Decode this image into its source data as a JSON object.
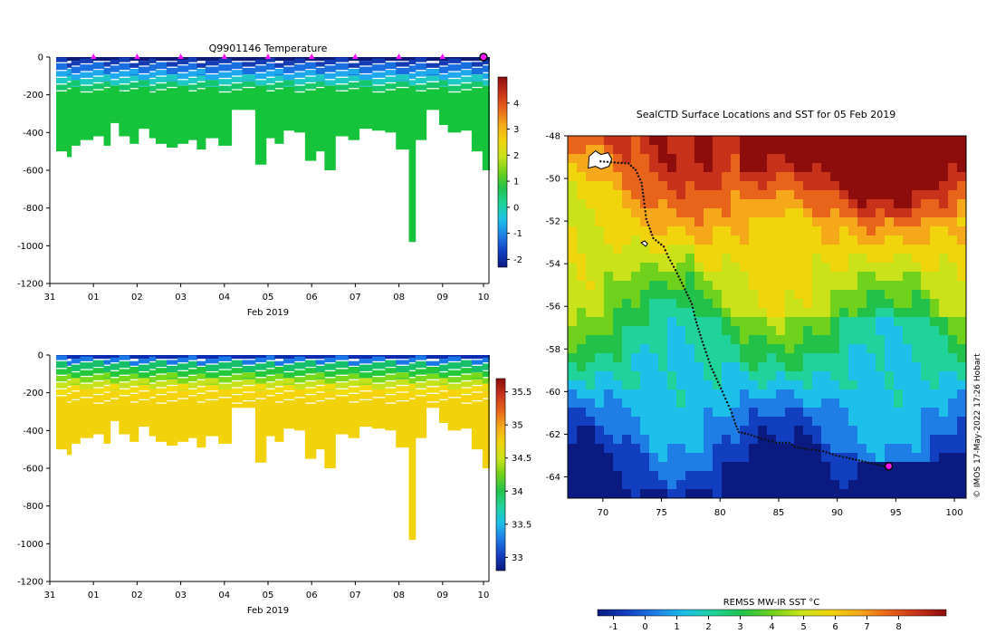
{
  "colors": {
    "rainbow": [
      "#0b1a80",
      "#123fc0",
      "#1f7ee6",
      "#1cc0e8",
      "#1fd39a",
      "#22c24a",
      "#6fd11c",
      "#c9e21a",
      "#f0d40c",
      "#f4a81a",
      "#e8641a",
      "#c8321a",
      "#8c0d0c"
    ],
    "temp_bins": [
      "#0d1a78",
      "#123bb4",
      "#1a6fe0",
      "#1ea8ee",
      "#1ec8c4",
      "#16c66a",
      "#15c43a"
    ],
    "sal_bins": [
      "#0b2cb0",
      "#1a78e6",
      "#16c06a",
      "#22c83a",
      "#78da1a",
      "#c6e21a",
      "#f2dc0a",
      "#f6d40c",
      "#f2d20a"
    ],
    "track": "#111111",
    "marker_magenta": "#ff18ff"
  },
  "credit": "© IMOS 17-May-2022 17:26 Hobart",
  "chart_data": [
    {
      "type": "heatmap",
      "name": "temperature_profiles",
      "title": "Q9901146  Temperature",
      "xlabel": "Feb 2019",
      "ylabel": "",
      "x_tick_labels": [
        "31",
        "01",
        "02",
        "03",
        "04",
        "05",
        "06",
        "07",
        "08",
        "09",
        "10"
      ],
      "y_ticks": [
        0,
        -200,
        -400,
        -600,
        -800,
        -1000,
        -1200
      ],
      "ylim": [
        -1200,
        0
      ],
      "xlim_days": [
        0,
        10
      ],
      "profile_days": [
        0.0,
        0.25,
        0.35,
        0.55,
        0.85,
        1.1,
        1.25,
        1.45,
        1.7,
        1.9,
        2.15,
        2.3,
        2.55,
        2.8,
        3.05,
        3.25,
        3.45,
        3.75,
        4.05,
        4.3,
        4.6,
        4.85,
        5.05,
        5.25,
        5.5,
        5.75,
        6.0,
        6.2,
        6.45,
        6.75,
        7.0,
        7.3,
        7.6,
        7.85,
        8.15,
        8.3,
        8.55,
        8.85,
        9.05,
        9.35,
        9.6,
        9.85,
        10.0
      ],
      "profile_depths": [
        -500,
        -530,
        -470,
        -440,
        -420,
        -470,
        -350,
        -420,
        -460,
        -380,
        -430,
        -460,
        -480,
        -460,
        -440,
        -490,
        -430,
        -470,
        -280,
        -280,
        -570,
        -430,
        -460,
        -390,
        -400,
        -550,
        -500,
        -600,
        -420,
        -440,
        -380,
        -390,
        -400,
        -490,
        -980,
        -440,
        -280,
        -360,
        -400,
        -390,
        -500,
        -600,
        -600
      ],
      "color_levels": [
        -2,
        -1.2,
        -0.5,
        0.2,
        0.8,
        1.4,
        2.0
      ],
      "surface_markers_days": [
        1,
        2,
        3,
        4,
        5,
        6,
        7,
        8,
        9
      ],
      "current_marker_day": 10,
      "colorbar": {
        "min": -2.3,
        "max": 5.0,
        "ticks": [
          4,
          3,
          2,
          1,
          0,
          -1,
          -2
        ],
        "tick_labels": [
          "4",
          "3",
          "2",
          "1",
          "0",
          "-1",
          "-2"
        ]
      }
    },
    {
      "type": "heatmap",
      "name": "salinity_profiles",
      "title": "",
      "xlabel": "Feb 2019",
      "ylabel": "",
      "x_tick_labels": [
        "31",
        "01",
        "02",
        "03",
        "04",
        "05",
        "06",
        "07",
        "08",
        "09",
        "10"
      ],
      "y_ticks": [
        0,
        -200,
        -400,
        -600,
        -800,
        -1000,
        -1200
      ],
      "ylim": [
        -1200,
        0
      ],
      "xlim_days": [
        0,
        10
      ],
      "color_levels": [
        33.0,
        33.6,
        34.0,
        34.2,
        34.4,
        34.5,
        34.6,
        34.65,
        34.7
      ],
      "colorbar": {
        "min": 32.8,
        "max": 35.7,
        "ticks": [
          35.5,
          35,
          34.5,
          34,
          33.5,
          33
        ],
        "tick_labels": [
          "35.5",
          "35",
          "34.5",
          "34",
          "33.5",
          "33"
        ]
      }
    },
    {
      "type": "scatter",
      "name": "sealctd_track_map",
      "title": "SealCTD Surface Locations and SST for 05 Feb 2019",
      "xlabel": "",
      "ylabel": "",
      "xlim": [
        67,
        101
      ],
      "ylim": [
        -65,
        -48
      ],
      "x_ticks": [
        70,
        75,
        80,
        85,
        90,
        95,
        100
      ],
      "x_tick_labels": [
        "70",
        "75",
        "80",
        "85",
        "90",
        "95",
        "100"
      ],
      "y_ticks": [
        -48,
        -50,
        -52,
        -54,
        -56,
        -58,
        -60,
        -62,
        -64
      ],
      "y_tick_labels": [
        "-48",
        "-50",
        "-52",
        "-54",
        "-56",
        "-58",
        "-60",
        "-62",
        "-64"
      ],
      "track": {
        "lon": [
          69.8,
          72.2,
          72.8,
          73.3,
          73.5,
          73.7,
          74.3,
          75.2,
          75.6,
          76.2,
          77.0,
          77.6,
          77.9,
          78.4,
          79.2,
          80.2,
          81.0,
          81.3,
          81.6,
          82.4,
          83.5,
          84.8,
          85.9,
          86.4,
          87.5,
          88.8,
          89.9,
          90.8,
          91.6,
          92.4,
          93.2,
          94.0,
          94.3,
          94.6
        ],
        "lat": [
          -49.2,
          -49.3,
          -49.6,
          -50.2,
          -51.0,
          -51.9,
          -52.8,
          -53.2,
          -53.7,
          -54.3,
          -55.2,
          -55.9,
          -56.6,
          -57.5,
          -58.8,
          -60.0,
          -61.0,
          -61.5,
          -61.9,
          -62.0,
          -62.2,
          -62.4,
          -62.4,
          -62.6,
          -62.7,
          -62.8,
          -63.0,
          -63.1,
          -63.2,
          -63.3,
          -63.4,
          -63.5,
          -63.6,
          -63.5
        ]
      },
      "current_position": {
        "lon": 94.4,
        "lat": -63.5
      },
      "colorbar": {
        "label": "REMSS MW-IR SST °C",
        "min": -1.5,
        "max": 9.5,
        "ticks": [
          -1,
          0,
          1,
          2,
          3,
          4,
          5,
          6,
          7,
          8
        ],
        "tick_labels": [
          "-1",
          "0",
          "1",
          "2",
          "3",
          "4",
          "5",
          "6",
          "7",
          "8"
        ]
      }
    }
  ]
}
